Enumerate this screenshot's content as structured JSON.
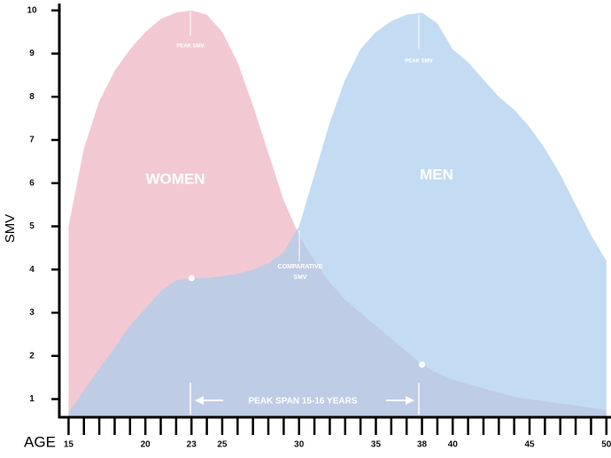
{
  "chart_data": {
    "type": "area",
    "x_label": "AGE",
    "y_label": "SMV",
    "x": [
      15,
      16,
      17,
      18,
      19,
      20,
      21,
      22,
      23,
      24,
      25,
      26,
      27,
      28,
      29,
      30,
      31,
      32,
      33,
      34,
      35,
      36,
      37,
      38,
      39,
      40,
      41,
      42,
      43,
      44,
      45,
      46,
      47,
      48,
      49,
      50
    ],
    "series": [
      {
        "name": "WOMEN",
        "color": "#f2c9d2",
        "values": [
          5.0,
          6.8,
          7.9,
          8.6,
          9.1,
          9.5,
          9.8,
          9.95,
          10,
          9.9,
          9.5,
          8.8,
          7.8,
          6.7,
          5.6,
          4.8,
          4.2,
          3.7,
          3.3,
          3.0,
          2.7,
          2.4,
          2.1,
          1.8,
          1.6,
          1.45,
          1.35,
          1.25,
          1.15,
          1.05,
          1.0,
          0.95,
          0.9,
          0.85,
          0.8,
          0.75
        ]
      },
      {
        "name": "MEN",
        "color": "#a9cdee",
        "values": [
          0.7,
          1.2,
          1.7,
          2.2,
          2.7,
          3.1,
          3.5,
          3.75,
          3.8,
          3.8,
          3.85,
          3.9,
          4.0,
          4.15,
          4.4,
          5.0,
          6.2,
          7.4,
          8.4,
          9.1,
          9.5,
          9.75,
          9.9,
          9.95,
          9.7,
          9.1,
          8.8,
          8.4,
          8.0,
          7.7,
          7.3,
          6.8,
          6.2,
          5.5,
          4.8,
          4.2
        ]
      }
    ],
    "points": [
      {
        "x": 23,
        "y": 3.8
      },
      {
        "x": 38,
        "y": 1.8
      }
    ],
    "annotations": {
      "peak_smv_women": "PEAK SMV",
      "peak_smv_men": "PEAK SMV",
      "comparative_1": "COMPARATIVE",
      "comparative_2": "SMV",
      "peak_span": "PEAK SPAN 15-16 YEARS"
    },
    "xlim": [
      14.4,
      50.3
    ],
    "ylim": [
      0.6,
      10.2
    ],
    "xticks": [
      15,
      20,
      23,
      25,
      30,
      35,
      38,
      40,
      45,
      50
    ],
    "x_minor_ticks": [
      15,
      16,
      17,
      18,
      19,
      20,
      21,
      22,
      23,
      24,
      25,
      26,
      27,
      28,
      29,
      30,
      31,
      32,
      33,
      34,
      35,
      36,
      37,
      38,
      39,
      40,
      41,
      42,
      43,
      44,
      45,
      46,
      47,
      48,
      49,
      50
    ],
    "yticks": [
      1,
      2,
      3,
      4,
      5,
      6,
      7,
      8,
      9,
      10
    ],
    "opacity": 0.7
  }
}
